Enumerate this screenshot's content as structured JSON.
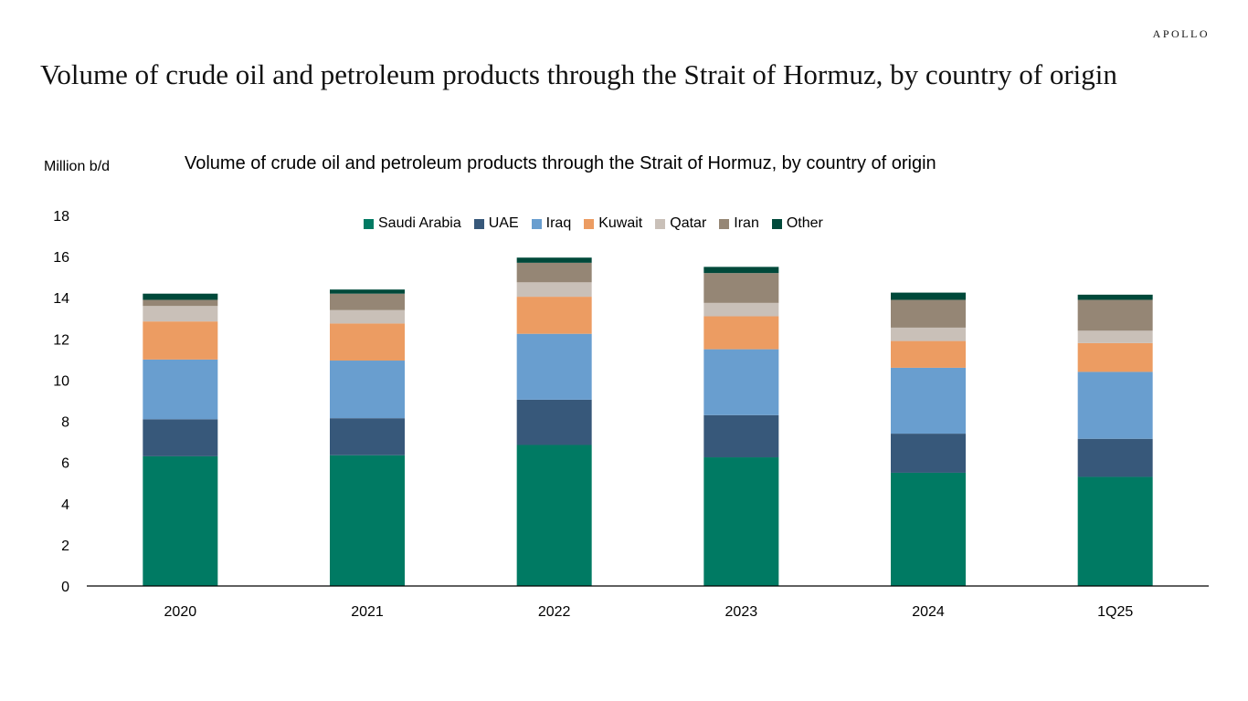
{
  "brand": "APOLLO",
  "page_title": "Volume of crude oil and petroleum products through the Strait of Hormuz,  by country of origin",
  "chart_data": {
    "type": "bar",
    "stacked": true,
    "title": "Volume of crude oil and petroleum products through the Strait of Hormuz,  by country of origin",
    "ylabel": "Million b/d",
    "xlabel": "",
    "ylim": [
      0,
      18
    ],
    "yticks": [
      0,
      2,
      4,
      6,
      8,
      10,
      12,
      14,
      16,
      18
    ],
    "categories": [
      "2020",
      "2021",
      "2022",
      "2023",
      "2024",
      "1Q25"
    ],
    "legend_position": "top",
    "grid": false,
    "series": [
      {
        "name": "Saudi Arabia",
        "color": "#007A63",
        "values": [
          6.3,
          6.35,
          6.85,
          6.25,
          5.5,
          5.3
        ]
      },
      {
        "name": "UAE",
        "color": "#37587A",
        "values": [
          1.8,
          1.8,
          2.2,
          2.05,
          1.9,
          1.85
        ]
      },
      {
        "name": "Iraq",
        "color": "#699ECF",
        "values": [
          2.9,
          2.8,
          3.2,
          3.2,
          3.2,
          3.25
        ]
      },
      {
        "name": "Kuwait",
        "color": "#EC9C62",
        "values": [
          1.85,
          1.8,
          1.8,
          1.6,
          1.3,
          1.4
        ]
      },
      {
        "name": "Qatar",
        "color": "#C9C0B8",
        "values": [
          0.75,
          0.65,
          0.7,
          0.65,
          0.65,
          0.6
        ]
      },
      {
        "name": "Iran",
        "color": "#958675",
        "values": [
          0.3,
          0.8,
          0.95,
          1.45,
          1.35,
          1.5
        ]
      },
      {
        "name": "Other",
        "color": "#00493A",
        "values": [
          0.3,
          0.2,
          0.25,
          0.3,
          0.35,
          0.25
        ]
      }
    ]
  }
}
